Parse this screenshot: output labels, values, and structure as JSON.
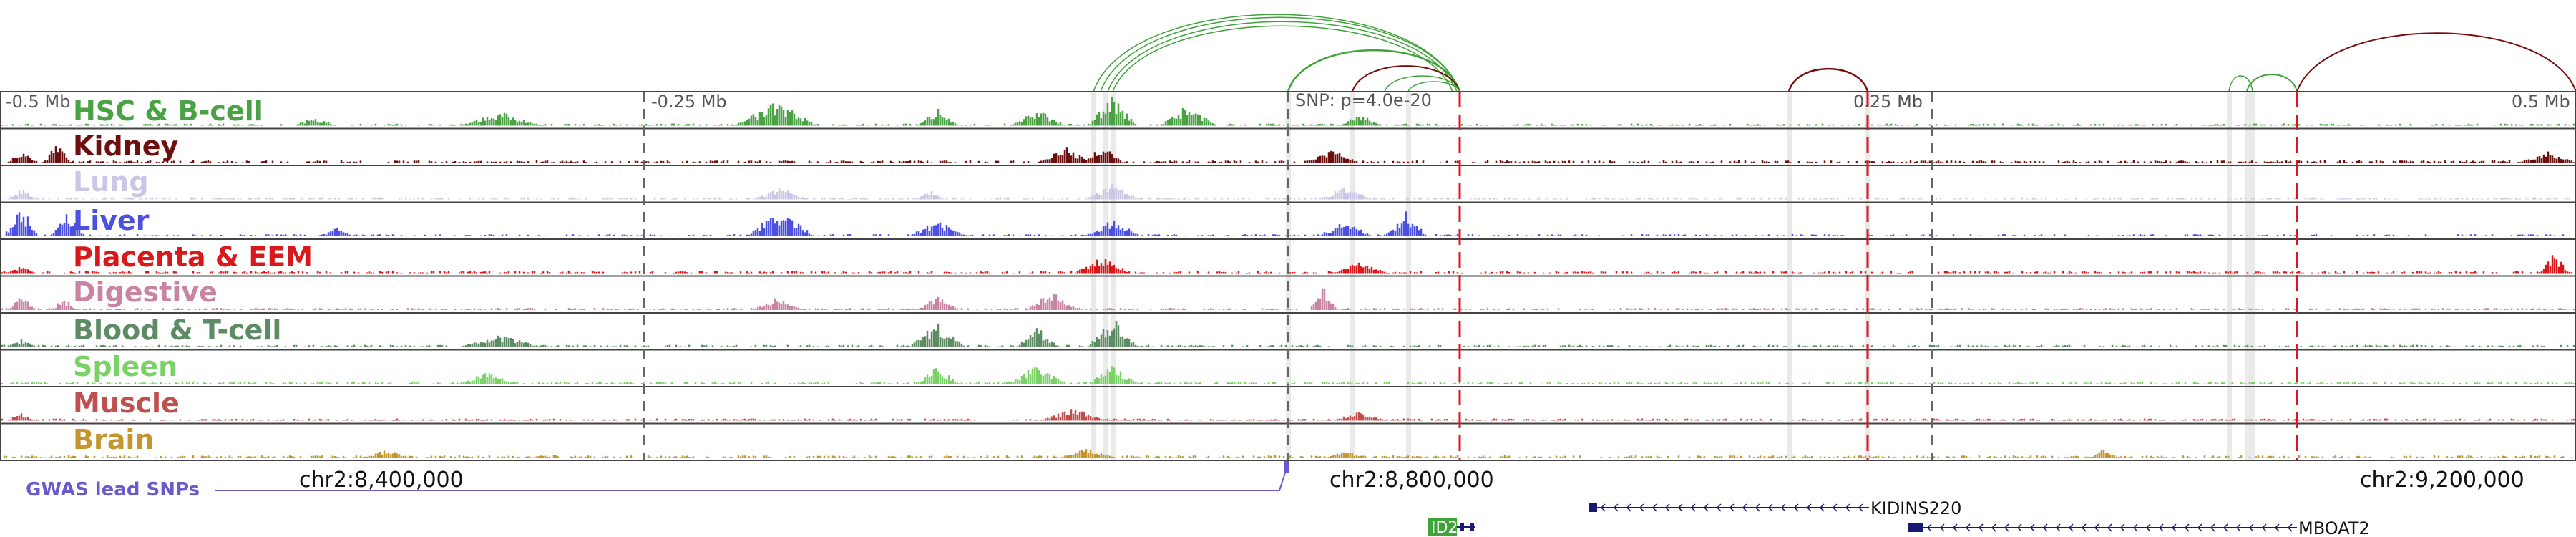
{
  "scale": {
    "left_label": "-0.5 Mb",
    "mid_left_label": "-0.25 Mb",
    "snp_label": "SNP: p=4.0e-20",
    "mid_right_label": "0.25 Mb",
    "right_label": "0.5 Mb"
  },
  "tracks": [
    {
      "name": "HSC & B-cell",
      "color": "#4aa245"
    },
    {
      "name": "Kidney",
      "color": "#6e0f0f"
    },
    {
      "name": "Lung",
      "color": "#c9c6e6"
    },
    {
      "name": "Liver",
      "color": "#4b50e0"
    },
    {
      "name": "Placenta & EEM",
      "color": "#d7191c"
    },
    {
      "name": "Digestive",
      "color": "#c983a3"
    },
    {
      "name": "Blood & T-cell",
      "color": "#5d8b63"
    },
    {
      "name": "Spleen",
      "color": "#7ad165"
    },
    {
      "name": "Muscle",
      "color": "#c0504d"
    },
    {
      "name": "Brain",
      "color": "#c4962c"
    }
  ],
  "gwas": {
    "label": "GWAS lead SNPs",
    "color": "#6a5acd"
  },
  "coordinates": [
    "chr2:8,400,000",
    "chr2:8,800,000",
    "chr2:9,200,000"
  ],
  "genes": [
    {
      "name": "KIDINS220",
      "strand": "minus"
    },
    {
      "name": "MBOAT2",
      "strand": "minus"
    },
    {
      "name": "ID2",
      "strand": "plus",
      "boxed": true
    }
  ],
  "colors": {
    "green_arc": "#3fa33a",
    "red_arc": "#7a0d0d",
    "snp_line": "#e0141e",
    "gene": "#191970"
  }
}
